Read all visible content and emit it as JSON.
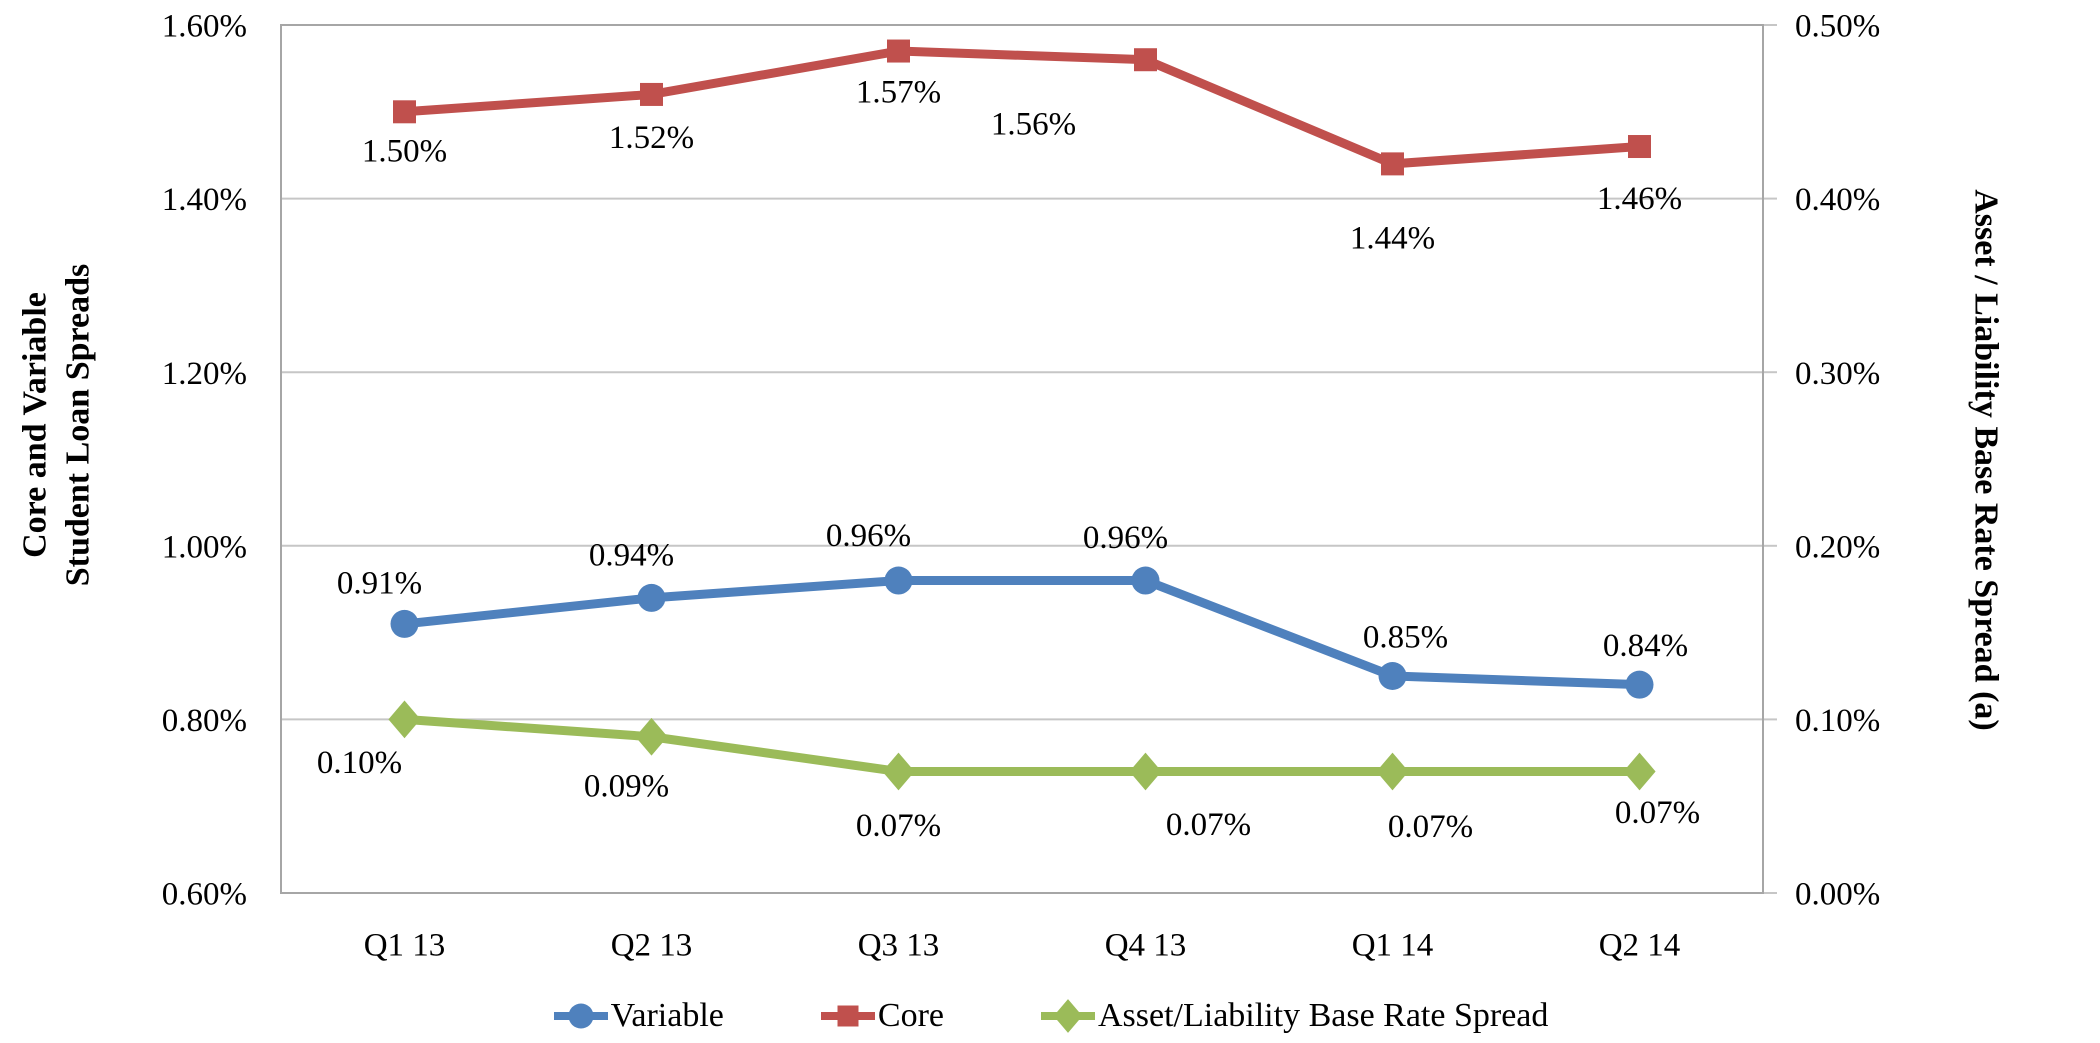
{
  "chart_data": {
    "type": "line",
    "title": "",
    "categories": [
      "Q1 13",
      "Q2 13",
      "Q3 13",
      "Q4 13",
      "Q1 14",
      "Q2 14"
    ],
    "series": [
      {
        "name": "Variable",
        "axis": "left",
        "color": "#4F81BD",
        "marker": "circle",
        "values": [
          0.91,
          0.94,
          0.96,
          0.96,
          0.85,
          0.84
        ],
        "data_labels": [
          "0.91%",
          "0.94%",
          "0.96%",
          "0.96%",
          "0.85%",
          "0.84%"
        ],
        "label_side": "above"
      },
      {
        "name": "Core",
        "axis": "left",
        "color": "#C0504D",
        "marker": "square",
        "values": [
          1.5,
          1.52,
          1.57,
          1.56,
          1.44,
          1.46
        ],
        "data_labels": [
          "1.50%",
          "1.52%",
          "1.57%",
          "1.56%",
          "1.44%",
          "1.46%"
        ],
        "label_side": "below"
      },
      {
        "name": "Asset/Liability Base Rate Spread",
        "axis": "right",
        "color": "#9BBB59",
        "marker": "diamond",
        "values": [
          0.1,
          0.09,
          0.07,
          0.07,
          0.07,
          0.07
        ],
        "data_labels": [
          "0.10%",
          "0.09%",
          "0.07%",
          "0.07%",
          "0.07%",
          "0.07%"
        ],
        "label_side": "below"
      }
    ],
    "left_axis": {
      "title": "Core and Variable\nStudent Loan Spreads",
      "ticks": [
        "1.60%",
        "1.40%",
        "1.20%",
        "1.00%",
        "0.80%",
        "0.60%"
      ],
      "min": 0.6,
      "max": 1.6
    },
    "right_axis": {
      "title": "Asset / Liability Base Rate Spread (a)",
      "ticks": [
        "0.50%",
        "0.40%",
        "0.30%",
        "0.20%",
        "0.10%",
        "0.00%"
      ],
      "min": 0.0,
      "max": 0.5
    },
    "x_axis": {
      "labels": [
        "Q1 13",
        "Q2 13",
        "Q3 13",
        "Q4 13",
        "Q1 14",
        "Q2 14"
      ]
    },
    "legend": {
      "position": "bottom",
      "items": [
        "Variable",
        "Core",
        "Asset/Liability Base Rate Spread"
      ]
    },
    "grid": true
  },
  "colors": {
    "variable": "#4F81BD",
    "core": "#C0504D",
    "asset_liability": "#9BBB59",
    "gridline": "#C6C6C6",
    "frame": "#A6A6A6",
    "text": "#000000",
    "background": "#FFFFFF"
  }
}
